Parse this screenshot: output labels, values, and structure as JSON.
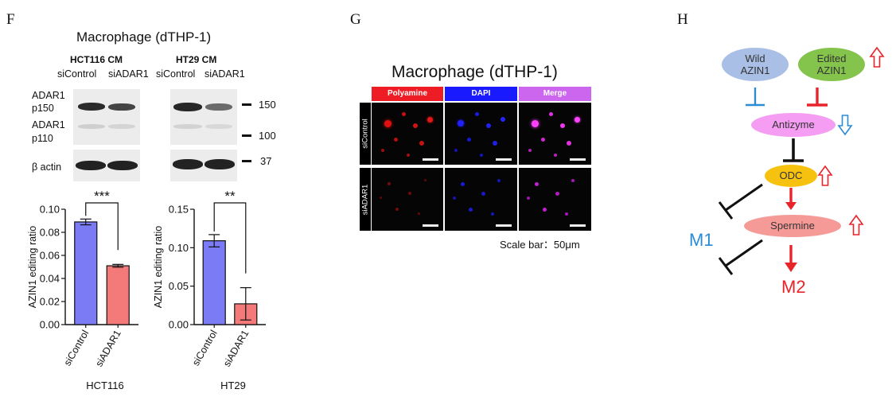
{
  "panel_f": {
    "letter": "F",
    "title": "Macrophage (dTHP-1)",
    "blot": {
      "groups": [
        "HCT116 CM",
        "HT29 CM"
      ],
      "lanes": [
        "siControl",
        "siADAR1",
        "siControl",
        "siADAR1"
      ],
      "row_labels": [
        "ADAR1",
        "p150",
        "ADAR1",
        "p110",
        "β actin"
      ],
      "markers": [
        "150",
        "100",
        "37"
      ]
    }
  },
  "panel_g": {
    "letter": "G",
    "title": "Macrophage (dTHP-1)",
    "channels": [
      "Polyamine",
      "DAPI",
      "Merge"
    ],
    "rows": [
      "siControl",
      "siADAR1"
    ],
    "scale_text": "Scale bar：50μm",
    "channel_colors": [
      "#ee1c24",
      "#1a1aff",
      "#cc66ee"
    ]
  },
  "panel_h": {
    "letter": "H",
    "nodes": {
      "wild": [
        "Wild",
        "AZIN1"
      ],
      "edited": [
        "Edited",
        "AZIN1"
      ],
      "antizyme": "Antizyme",
      "odc": "ODC",
      "spermine": "Spermine"
    },
    "m1": "M1",
    "m2": "M2",
    "up_color": "#e8242b",
    "down_color": "#2a8bd6"
  },
  "chart_data": [
    {
      "type": "bar",
      "title": "HCT116",
      "categories": [
        "siControl",
        "siADAR1"
      ],
      "values": [
        0.089,
        0.051
      ],
      "errors": [
        0.0025,
        0.0012
      ],
      "ylabel": "AZIN1 editing ratio",
      "xlabel": "HCT116",
      "ylim": [
        0,
        0.1
      ],
      "yticks": [
        "0.00",
        "0.02",
        "0.04",
        "0.06",
        "0.08",
        "0.10"
      ],
      "significance": "***",
      "colors": [
        "#7b7bf5",
        "#f47a7a"
      ]
    },
    {
      "type": "bar",
      "title": "HT29",
      "categories": [
        "siControl",
        "siADAR1"
      ],
      "values": [
        0.109,
        0.027
      ],
      "errors": [
        0.008,
        0.021
      ],
      "ylabel": "AZIN1 editing ratio",
      "xlabel": "HT29",
      "ylim": [
        0,
        0.15
      ],
      "yticks": [
        "0.00",
        "0.05",
        "0.10",
        "0.15"
      ],
      "significance": "**",
      "colors": [
        "#7b7bf5",
        "#f47a7a"
      ]
    }
  ]
}
